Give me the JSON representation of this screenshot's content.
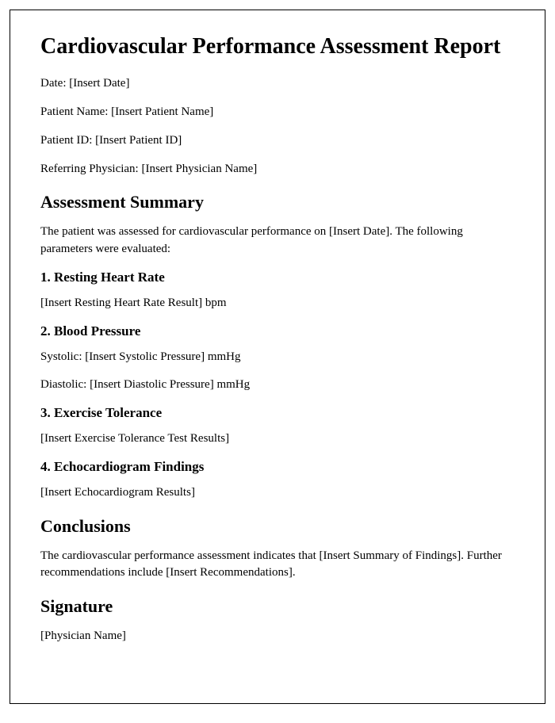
{
  "title": "Cardiovascular Performance Assessment Report",
  "meta": {
    "date_label": "Date: ",
    "date_value": "[Insert Date]",
    "patient_name_label": "Patient Name: ",
    "patient_name_value": "[Insert Patient Name]",
    "patient_id_label": "Patient ID: ",
    "patient_id_value": "[Insert Patient ID]",
    "physician_label": "Referring Physician: ",
    "physician_value": "[Insert Physician Name]"
  },
  "summary": {
    "heading": "Assessment Summary",
    "intro": "The patient was assessed for cardiovascular performance on [Insert Date]. The following parameters were evaluated:"
  },
  "sections": {
    "s1": {
      "heading": "1. Resting Heart Rate",
      "body": "[Insert Resting Heart Rate Result] bpm"
    },
    "s2": {
      "heading": "2. Blood Pressure",
      "systolic": "Systolic: [Insert Systolic Pressure] mmHg",
      "diastolic": "Diastolic: [Insert Diastolic Pressure] mmHg"
    },
    "s3": {
      "heading": "3. Exercise Tolerance",
      "body": "[Insert Exercise Tolerance Test Results]"
    },
    "s4": {
      "heading": "4. Echocardiogram Findings",
      "body": "[Insert Echocardiogram Results]"
    }
  },
  "conclusions": {
    "heading": "Conclusions",
    "body": "The cardiovascular performance assessment indicates that [Insert Summary of Findings]. Further recommendations include [Insert Recommendations]."
  },
  "signature": {
    "heading": "Signature",
    "name": "[Physician Name]"
  }
}
